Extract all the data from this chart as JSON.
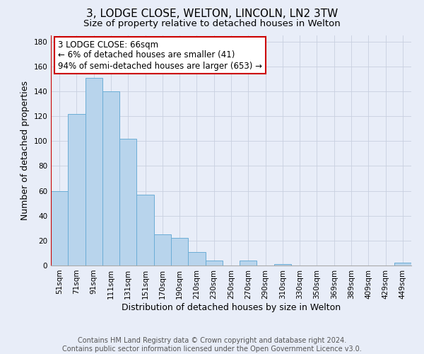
{
  "title": "3, LODGE CLOSE, WELTON, LINCOLN, LN2 3TW",
  "subtitle": "Size of property relative to detached houses in Welton",
  "xlabel": "Distribution of detached houses by size in Welton",
  "ylabel": "Number of detached properties",
  "bar_labels": [
    "51sqm",
    "71sqm",
    "91sqm",
    "111sqm",
    "131sqm",
    "151sqm",
    "170sqm",
    "190sqm",
    "210sqm",
    "230sqm",
    "250sqm",
    "270sqm",
    "290sqm",
    "310sqm",
    "330sqm",
    "350sqm",
    "369sqm",
    "389sqm",
    "409sqm",
    "429sqm",
    "449sqm"
  ],
  "bar_values": [
    60,
    122,
    151,
    140,
    102,
    57,
    25,
    22,
    11,
    4,
    0,
    4,
    0,
    1,
    0,
    0,
    0,
    0,
    0,
    0,
    2
  ],
  "bar_color": "#b8d4ec",
  "bar_edge_color": "#6badd6",
  "highlight_color": "#cc0000",
  "annotation_line1": "3 LODGE CLOSE: 66sqm",
  "annotation_line2": "← 6% of detached houses are smaller (41)",
  "annotation_line3": "94% of semi-detached houses are larger (653) →",
  "ylim": [
    0,
    185
  ],
  "yticks": [
    0,
    20,
    40,
    60,
    80,
    100,
    120,
    140,
    160,
    180
  ],
  "footer_text": "Contains HM Land Registry data © Crown copyright and database right 2024.\nContains public sector information licensed under the Open Government Licence v3.0.",
  "bg_color": "#e8edf8",
  "plot_bg_color": "#e8edf8",
  "grid_color": "#c8d0e0",
  "title_fontsize": 11,
  "subtitle_fontsize": 9.5,
  "axis_label_fontsize": 9,
  "tick_fontsize": 7.5,
  "annotation_fontsize": 8.5,
  "footer_fontsize": 7
}
